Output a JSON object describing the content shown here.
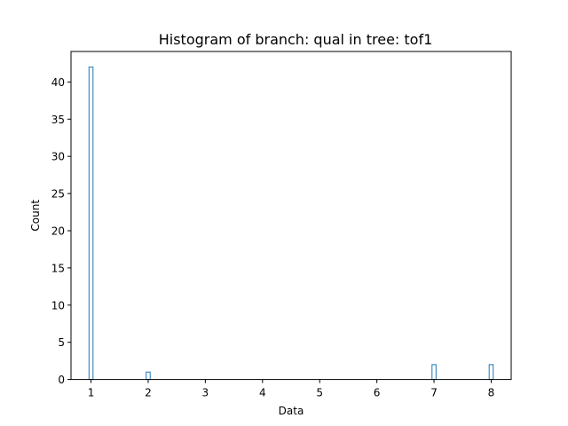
{
  "chart_data": {
    "type": "bar",
    "title": "Histogram of branch: qual in tree: tof1",
    "xlabel": "Data",
    "ylabel": "Count",
    "xlim": [
      0.65,
      8.35
    ],
    "ylim": [
      0,
      44.1
    ],
    "xticks": [
      1,
      2,
      3,
      4,
      5,
      6,
      7,
      8
    ],
    "yticks": [
      0,
      5,
      10,
      15,
      20,
      25,
      30,
      35,
      40
    ],
    "bin_width": 0.07,
    "bars": [
      {
        "x": 1,
        "value": 42
      },
      {
        "x": 2,
        "value": 1
      },
      {
        "x": 7,
        "value": 2
      },
      {
        "x": 8,
        "value": 2
      }
    ],
    "color": "#1f77b4",
    "grid": false,
    "legend": "none"
  }
}
